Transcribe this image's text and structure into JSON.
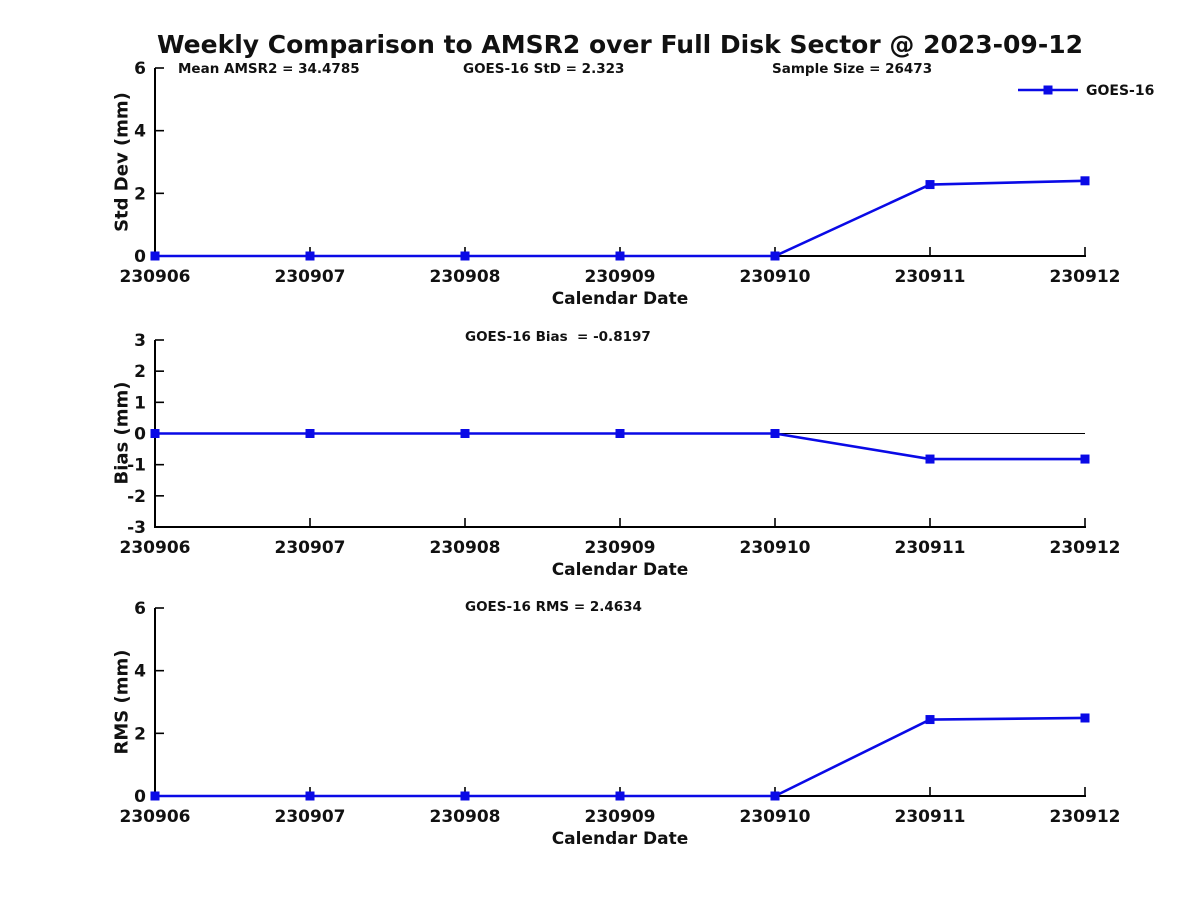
{
  "title": "Weekly Comparison to AMSR2 over Full Disk Sector @ 2023-09-12",
  "legend": {
    "label": "GOES-16"
  },
  "colors": {
    "line": "#0a0ae6",
    "axis": "#000000",
    "text": "#111111"
  },
  "stats": {
    "mean_amsr2": "34.4785",
    "goes16_std": "2.323",
    "sample_size": "26473",
    "goes16_bias": "-0.8197",
    "goes16_rms": "2.4634"
  },
  "chart_data": [
    {
      "type": "line",
      "categories": [
        "230906",
        "230907",
        "230908",
        "230909",
        "230910",
        "230911",
        "230912"
      ],
      "series": [
        {
          "name": "GOES-16",
          "values": [
            0,
            0,
            0,
            0,
            0,
            2.28,
            2.4
          ]
        }
      ],
      "ylabel": "Std Dev (mm)",
      "xlabel": "Calendar Date",
      "ylim": [
        0,
        6
      ],
      "yticks": [
        0,
        2,
        4,
        6
      ],
      "grid": false,
      "legend_position": "top-right",
      "annotations": [
        "Mean AMSR2 = 34.4785",
        "GOES-16 StD = 2.323",
        "Sample Size = 26473"
      ]
    },
    {
      "type": "line",
      "categories": [
        "230906",
        "230907",
        "230908",
        "230909",
        "230910",
        "230911",
        "230912"
      ],
      "series": [
        {
          "name": "GOES-16",
          "values": [
            0,
            0,
            0,
            0,
            0,
            -0.82,
            -0.82
          ]
        }
      ],
      "ylabel": "Bias (mm)",
      "xlabel": "Calendar Date",
      "ylim": [
        -3,
        3
      ],
      "yticks": [
        3,
        2,
        1,
        0,
        -1,
        -2,
        -3
      ],
      "zero_line": true,
      "grid": false,
      "annotations": [
        "GOES-16 Bias  = -0.8197"
      ]
    },
    {
      "type": "line",
      "categories": [
        "230906",
        "230907",
        "230908",
        "230909",
        "230910",
        "230911",
        "230912"
      ],
      "series": [
        {
          "name": "GOES-16",
          "values": [
            0,
            0,
            0,
            0,
            0,
            2.44,
            2.49
          ]
        }
      ],
      "ylabel": "RMS (mm)",
      "xlabel": "Calendar Date",
      "ylim": [
        0,
        6
      ],
      "yticks": [
        0,
        2,
        4,
        6
      ],
      "grid": false,
      "annotations": [
        "GOES-16 RMS = 2.4634"
      ]
    }
  ]
}
